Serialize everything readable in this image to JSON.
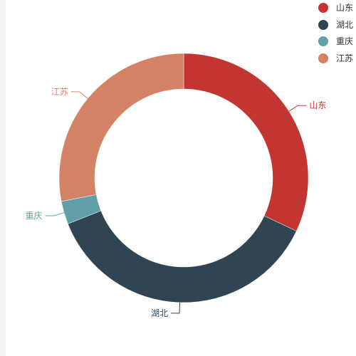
{
  "chart_data": {
    "type": "pie",
    "donut": true,
    "categories": [
      "山东",
      "湖北",
      "重庆",
      "江苏"
    ],
    "values": [
      32,
      37,
      3,
      28
    ],
    "colors": [
      "#c23531",
      "#2f4554",
      "#61a0a8",
      "#d48265"
    ],
    "legend_position": "top-right",
    "title": ""
  }
}
